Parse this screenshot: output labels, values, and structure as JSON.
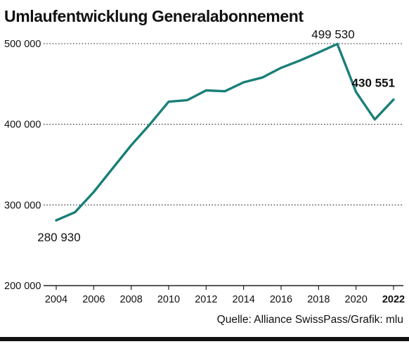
{
  "title": "Umlaufentwicklung Generalabonnement",
  "source": "Quelle: Alliance SwissPass/Grafik: mlu",
  "colors": {
    "line": "#1a7f78",
    "grid": "#222222",
    "axis": "#111111"
  },
  "chart_data": {
    "type": "line",
    "title": "Umlaufentwicklung Generalabonnement",
    "xlabel": "",
    "ylabel": "",
    "xlim": [
      2004,
      2022
    ],
    "ylim": [
      200000,
      500000
    ],
    "grid": true,
    "y_ticks": [
      {
        "value": 500000,
        "label": "500 000"
      },
      {
        "value": 400000,
        "label": "400 000"
      },
      {
        "value": 300000,
        "label": "300 000"
      },
      {
        "value": 200000,
        "label": "200 000"
      }
    ],
    "x_ticks": [
      {
        "value": 2004,
        "label": "2004",
        "bold": false
      },
      {
        "value": 2006,
        "label": "2006",
        "bold": false
      },
      {
        "value": 2008,
        "label": "2008",
        "bold": false
      },
      {
        "value": 2010,
        "label": "2010",
        "bold": false
      },
      {
        "value": 2012,
        "label": "2012",
        "bold": false
      },
      {
        "value": 2014,
        "label": "2014",
        "bold": false
      },
      {
        "value": 2016,
        "label": "2016",
        "bold": false
      },
      {
        "value": 2018,
        "label": "2018",
        "bold": false
      },
      {
        "value": 2020,
        "label": "2020",
        "bold": false
      },
      {
        "value": 2022,
        "label": "2022",
        "bold": true
      }
    ],
    "series": [
      {
        "x": [
          2004,
          2005,
          2006,
          2007,
          2008,
          2009,
          2010,
          2011,
          2012,
          2013,
          2014,
          2015,
          2016,
          2017,
          2018,
          2019,
          2020,
          2021,
          2022
        ],
        "y": [
          280930,
          291000,
          316000,
          345000,
          374000,
          400000,
          428000,
          430000,
          442000,
          441000,
          452000,
          458000,
          470000,
          479000,
          489000,
          499530,
          440000,
          406000,
          430551
        ]
      }
    ],
    "annotations": [
      {
        "x": 2004,
        "y": 280930,
        "text": "280 930",
        "bold": false,
        "position": "below"
      },
      {
        "x": 2019,
        "y": 499530,
        "text": "499 530",
        "bold": false,
        "position": "above"
      },
      {
        "x": 2022,
        "y": 430551,
        "text": "430 551",
        "bold": true,
        "position": "left-above"
      }
    ]
  }
}
